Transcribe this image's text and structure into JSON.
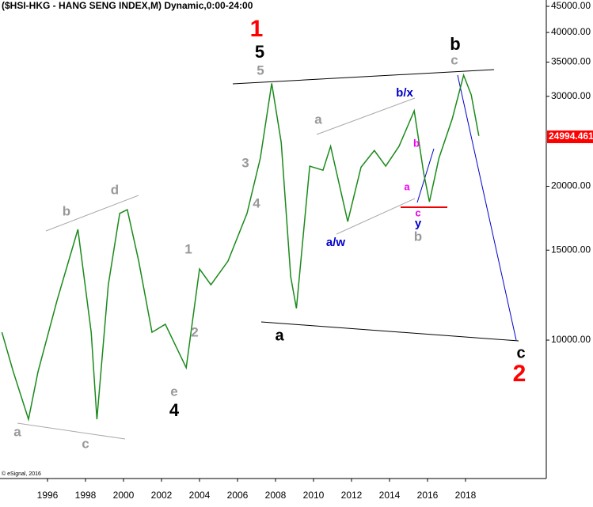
{
  "chart_data": {
    "type": "line",
    "title": "($HSI-HKG - HANG SENG INDEX,M) Dynamic,0:00-24:00",
    "credit": "© eSignal, 2016",
    "log_scale": true,
    "grid": false,
    "xlim": [
      1993.5,
      2022.25
    ],
    "xticks": [
      1996,
      1998,
      2000,
      2002,
      2004,
      2006,
      2008,
      2010,
      2012,
      2014,
      2016,
      2018
    ],
    "ylim": [
      5360,
      46300
    ],
    "yticks": [
      {
        "value": 10000,
        "label": "10000.00"
      },
      {
        "value": 15000,
        "label": "15000.00"
      },
      {
        "value": 20000,
        "label": "20000.00"
      },
      {
        "value": 30000,
        "label": "30000.00"
      },
      {
        "value": 35000,
        "label": "35000.00"
      },
      {
        "value": 40000,
        "label": "40000.00"
      },
      {
        "value": 45000,
        "label": "45000.00"
      }
    ],
    "last_price": {
      "value": 24994.461,
      "label": "24994.461"
    },
    "x": [
      1993.6,
      1994.2,
      1995.0,
      1995.5,
      1996.5,
      1997.6,
      1998.3,
      1998.6,
      1999.2,
      1999.8,
      2000.2,
      2000.8,
      2001.5,
      2002.2,
      2003.3,
      2004.0,
      2004.6,
      2005.5,
      2006.5,
      2007.2,
      2007.8,
      2008.3,
      2008.8,
      2009.1,
      2009.8,
      2010.5,
      2010.9,
      2011.8,
      2012.5,
      2013.2,
      2013.8,
      2014.5,
      2015.3,
      2015.8,
      2016.1,
      2016.6,
      2017.3,
      2017.9,
      2018.3,
      2018.7
    ],
    "series": [
      {
        "color": "#1a8a1a",
        "values": [
          10360,
          8670,
          7000,
          8670,
          11950,
          16470,
          10360,
          7000,
          12830,
          17700,
          18000,
          14280,
          10360,
          10740,
          8830,
          13780,
          12830,
          14280,
          17700,
          22700,
          31800,
          24370,
          13300,
          11540,
          21900,
          21500,
          23950,
          17060,
          21800,
          23500,
          21900,
          23950,
          28100,
          21200,
          18650,
          22700,
          27100,
          33000,
          30200,
          25100
        ]
      }
    ],
    "annotations": [
      {
        "text": "1",
        "color": "#ff0000"
      },
      {
        "text": "5",
        "color": "#000000"
      },
      {
        "text": "5",
        "color": "#999999"
      },
      {
        "text": "b",
        "color": "#000000"
      },
      {
        "text": "c",
        "color": "#999999"
      },
      {
        "text": "b/x",
        "color": "#0000cc"
      },
      {
        "text": "a",
        "color": "#999999"
      },
      {
        "text": "3",
        "color": "#999999"
      },
      {
        "text": "4",
        "color": "#999999"
      },
      {
        "text": "d",
        "color": "#999999"
      },
      {
        "text": "b",
        "color": "#999999"
      },
      {
        "text": "1",
        "color": "#999999"
      },
      {
        "text": "2",
        "color": "#999999"
      },
      {
        "text": "b",
        "color": "#ee00ee"
      },
      {
        "text": "a",
        "color": "#ee00ee"
      },
      {
        "text": "c",
        "color": "#ee00ee"
      },
      {
        "text": "y",
        "color": "#0000cc"
      },
      {
        "text": "b",
        "color": "#999999"
      },
      {
        "text": "a/w",
        "color": "#0000cc"
      },
      {
        "text": "a",
        "color": "#000000"
      },
      {
        "text": "c",
        "color": "#000000"
      },
      {
        "text": "2",
        "color": "#ff0000"
      },
      {
        "text": "e",
        "color": "#999999"
      },
      {
        "text": "4",
        "color": "#000000"
      },
      {
        "text": "a",
        "color": "#999999"
      },
      {
        "text": "c",
        "color": "#999999"
      }
    ]
  }
}
